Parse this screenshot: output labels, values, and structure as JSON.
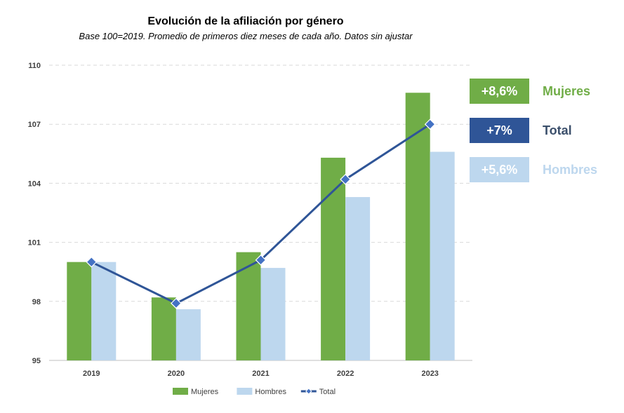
{
  "chart_data": {
    "type": "bar",
    "title": "Evolución de la afiliación por género",
    "subtitle": "Base 100=2019. Promedio de primeros diez meses de cada año. Datos sin ajustar",
    "categories": [
      "2019",
      "2020",
      "2021",
      "2022",
      "2023"
    ],
    "series": [
      {
        "name": "Mujeres",
        "kind": "bar",
        "color": "#70AD47",
        "values": [
          100,
          98.2,
          100.5,
          105.3,
          108.6
        ]
      },
      {
        "name": "Hombres",
        "kind": "bar",
        "color": "#BDD7EE",
        "values": [
          100,
          97.6,
          99.7,
          103.3,
          105.6
        ]
      },
      {
        "name": "Total",
        "kind": "line",
        "color": "#2F5597",
        "marker_color": "#4472C4",
        "values": [
          100,
          97.9,
          100.1,
          104.2,
          107.0
        ]
      }
    ],
    "ylim": [
      95,
      110
    ],
    "yticks": [
      "95",
      "98",
      "101",
      "104",
      "107",
      "110"
    ],
    "grid": true,
    "legend_position": "bottom",
    "xlabel": "",
    "ylabel": ""
  },
  "badges": [
    {
      "value": "+8,6%",
      "label": "Mujeres",
      "bg": "#70AD47",
      "label_color": "#70AD47"
    },
    {
      "value": "+7%",
      "label": "Total",
      "bg": "#2F5597",
      "label_color": "#3B4F6B"
    },
    {
      "value": "+5,6%",
      "label": "Hombres",
      "bg": "#BDD7EE",
      "label_color": "#BDD7EE"
    }
  ]
}
